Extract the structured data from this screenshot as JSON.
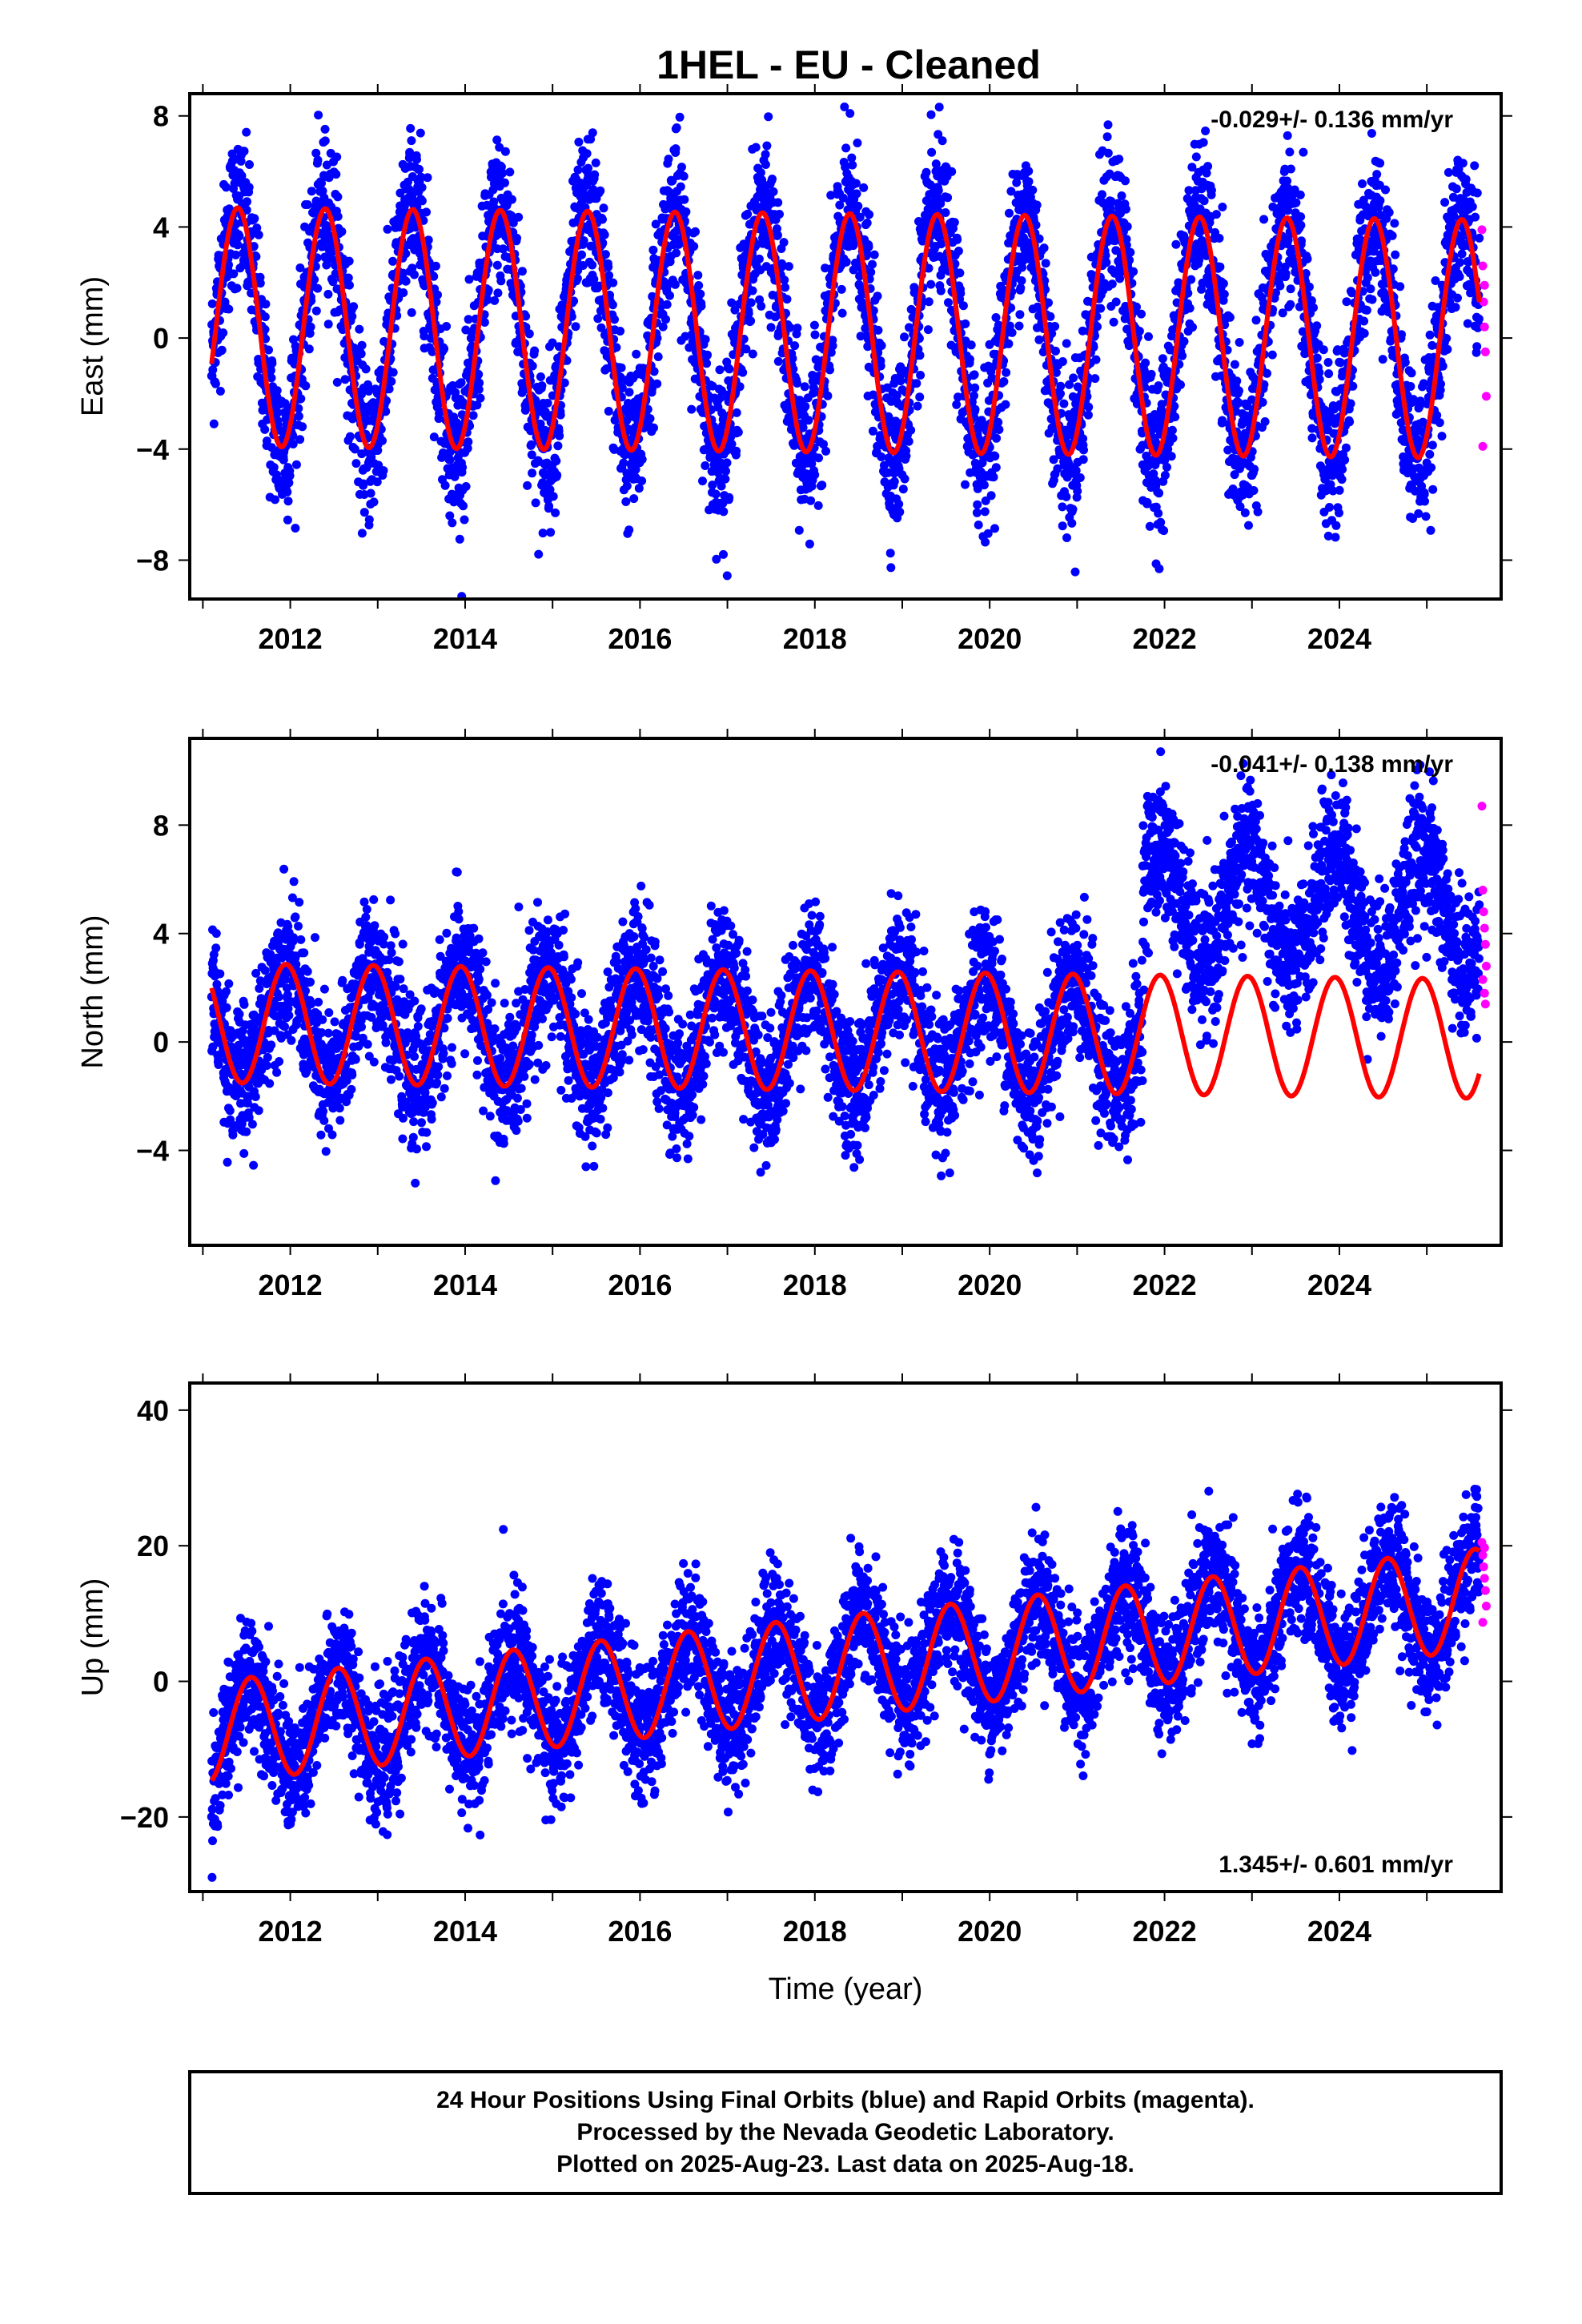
{
  "title": "1HEL  - EU - Cleaned",
  "footer": {
    "lines": [
      "24 Hour Positions Using Final Orbits (blue) and Rapid Orbits (magenta).",
      "Processed by the Nevada Geodetic Laboratory.",
      "Plotted on 2025-Aug-23. Last data on 2025-Aug-18."
    ]
  },
  "colors": {
    "final": "#0000ff",
    "rapid": "#ff00ff",
    "model": "#ff0000"
  },
  "chart_data": [
    {
      "type": "scatter",
      "id": "east",
      "ylabel": "East (mm)",
      "xlim": [
        2010.85,
        2025.85
      ],
      "ylim": [
        -9.4,
        8.8
      ],
      "xticks": [
        2012,
        2014,
        2016,
        2018,
        2020,
        2022,
        2024
      ],
      "yticks": [
        -8,
        -4,
        0,
        4,
        8
      ],
      "rate_label": "-0.029+/- 0.136 mm/yr",
      "rate_position": "top-right",
      "model": {
        "mean": 0.4,
        "amplitude": 4.3,
        "trend_per_year": -0.03,
        "peak_phase_year": 0.4,
        "noise_sd": 1.4,
        "t0": 2011.1,
        "t1": 2025.6
      },
      "rapid_points": [
        [
          2025.63,
          3.9
        ],
        [
          2025.64,
          2.6
        ],
        [
          2025.65,
          1.3
        ],
        [
          2025.66,
          0.4
        ],
        [
          2025.67,
          -0.5
        ],
        [
          2025.68,
          -2.1
        ],
        [
          2025.64,
          -3.9
        ],
        [
          2025.66,
          1.9
        ]
      ]
    },
    {
      "type": "scatter",
      "id": "north",
      "ylabel": "North (mm)",
      "xlim": [
        2010.85,
        2025.85
      ],
      "ylim": [
        -7.5,
        11.2
      ],
      "xticks": [
        2012,
        2014,
        2016,
        2018,
        2020,
        2022,
        2024
      ],
      "yticks": [
        -4,
        0,
        4,
        8
      ],
      "rate_label": "-0.041+/- 0.138 mm/yr",
      "rate_position": "top-right",
      "offset": {
        "year": 2021.75,
        "size_mm": 4.7
      },
      "model": {
        "mean": 0.7,
        "amplitude": 2.2,
        "trend_per_year": -0.04,
        "peak_phase_year": 0.95,
        "noise_sd": 1.3,
        "t0": 2011.1,
        "t1": 2025.6
      },
      "rapid_points": [
        [
          2025.63,
          8.7
        ],
        [
          2025.64,
          5.6
        ],
        [
          2025.65,
          4.8
        ],
        [
          2025.66,
          4.2
        ],
        [
          2025.67,
          3.6
        ],
        [
          2025.68,
          2.8
        ],
        [
          2025.64,
          2.3
        ],
        [
          2025.66,
          1.8
        ],
        [
          2025.67,
          1.4
        ]
      ]
    },
    {
      "type": "scatter",
      "id": "up",
      "ylabel": "Up (mm)",
      "xlabel": "Time (year)",
      "xlim": [
        2010.85,
        2025.85
      ],
      "ylim": [
        -31,
        44
      ],
      "xticks": [
        2012,
        2014,
        2016,
        2018,
        2020,
        2022,
        2024
      ],
      "yticks": [
        -20,
        0,
        20,
        40
      ],
      "rate_label": "1.345+/- 0.601 mm/yr",
      "rate_position": "bottom-right",
      "model": {
        "mean": -7.5,
        "amplitude": 7.5,
        "trend_per_year": 1.35,
        "peak_phase_year": 0.55,
        "noise_sd": 4.6,
        "t0": 2011.1,
        "t1": 2025.6
      },
      "rapid_points": [
        [
          2025.63,
          20.5
        ],
        [
          2025.64,
          18.6
        ],
        [
          2025.65,
          16.9
        ],
        [
          2025.66,
          15.2
        ],
        [
          2025.67,
          13.4
        ],
        [
          2025.68,
          11.1
        ],
        [
          2025.64,
          8.7
        ],
        [
          2025.66,
          19.7
        ]
      ]
    }
  ]
}
